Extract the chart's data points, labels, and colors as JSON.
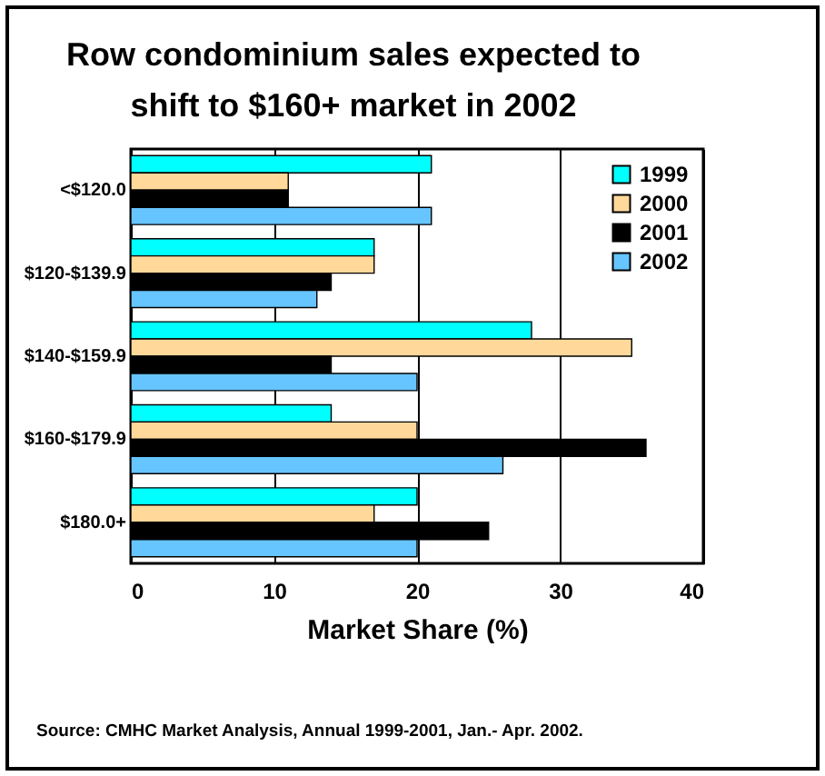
{
  "chart_data": {
    "type": "bar",
    "orientation": "horizontal",
    "title": "Row condominium sales expected to\nshift  to $160+ market in 2002",
    "categories": [
      "<$120.0",
      "$120-$139.9",
      "$140-$159.9",
      "$160-$179.9",
      "$180.0+"
    ],
    "series": [
      {
        "name": "1999",
        "color": "#00ffff",
        "values": [
          21,
          17,
          28,
          14,
          20
        ]
      },
      {
        "name": "2000",
        "color": "#ffd89a",
        "values": [
          11,
          17,
          35,
          20,
          17
        ]
      },
      {
        "name": "2001",
        "color": "#000000",
        "values": [
          11,
          14,
          14,
          36,
          25
        ]
      },
      {
        "name": "2002",
        "color": "#66c5ff",
        "values": [
          21,
          13,
          20,
          26,
          20
        ]
      }
    ],
    "xlabel": "Market Share (%)",
    "xlim": [
      0,
      40
    ],
    "xticks": [
      0,
      10,
      20,
      30,
      40
    ],
    "grid": "x",
    "legend": "top right",
    "annotations": [
      "Source:  CMHC Market Analysis, Annual 1999-2001, Jan.- Apr. 2002."
    ]
  }
}
